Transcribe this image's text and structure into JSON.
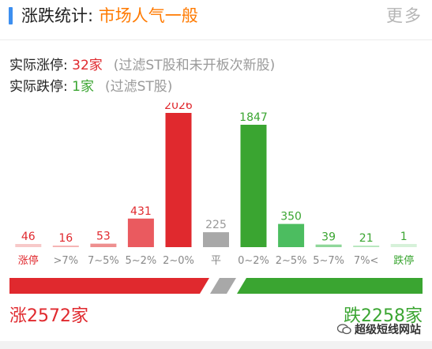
{
  "header": {
    "title_label": "涨跌统计:",
    "title_value": "市场人气一般",
    "more_label": "更多"
  },
  "stats": {
    "up_label": "实际涨停:",
    "up_value": "32家",
    "up_note": "(过滤ST股和未开板次新股)",
    "down_label": "实际跌停:",
    "down_value": "1家",
    "down_note": "(过滤ST股)"
  },
  "colors": {
    "red": "#e0292e",
    "green": "#3aa531",
    "gray": "#a8a8a8",
    "orange": "#ff7a00",
    "accent": "#3d8ff0"
  },
  "chart_data": {
    "type": "bar",
    "categories": [
      "涨停",
      ">7%",
      "7~5%",
      "5~2%",
      "2~0%",
      "平",
      "0~2%",
      "2~5%",
      "5~7%",
      "7%<",
      "跌停"
    ],
    "values": [
      46,
      16,
      53,
      431,
      2026,
      225,
      1847,
      350,
      39,
      21,
      1
    ],
    "bar_colors": [
      "#f7c9c9",
      "#f5b5b5",
      "#ee8f8f",
      "#ea5a5f",
      "#e0292e",
      "#a8a8a8",
      "#3aa531",
      "#4cbd60",
      "#8fd79a",
      "#b9e7bf",
      "#d6f1d9"
    ],
    "label_colors": [
      "#e0292e",
      "#e0292e",
      "#e0292e",
      "#e0292e",
      "#e0292e",
      "#999999",
      "#3aa531",
      "#3aa531",
      "#3aa531",
      "#3aa531",
      "#3aa531"
    ],
    "category_label_colors": [
      "#e0292e",
      "#888888",
      "#888888",
      "#888888",
      "#888888",
      "#888888",
      "#888888",
      "#888888",
      "#888888",
      "#888888",
      "#3aa531"
    ],
    "ylim": [
      0,
      2026
    ]
  },
  "summary": {
    "up_total": "涨2572家",
    "down_total": "跌2258家",
    "up_count": 2572,
    "down_count": 2258
  },
  "watermark": {
    "text": "超级短线网站",
    "icon": "wechat-icon"
  }
}
